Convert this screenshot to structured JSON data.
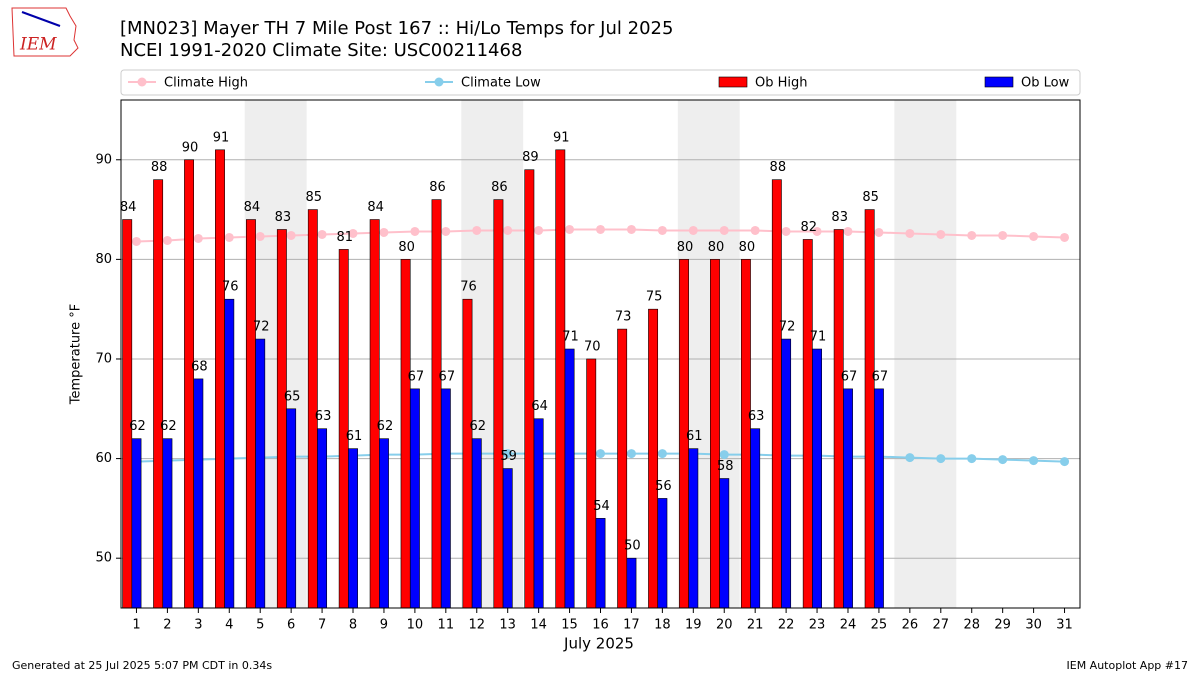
{
  "logo_text": "IEM",
  "footer_left": "Generated at 25 Jul 2025 5:07 PM CDT in 0.34s",
  "footer_right": "IEM Autoplot App #17",
  "chart_data": {
    "type": "bar",
    "title": "[MN023] Mayer TH 7 Mile Post 167 :: Hi/Lo Temps for Jul 2025",
    "subtitle": "NCEI 1991-2020 Climate Site: USC00211468",
    "x_label": "July 2025",
    "y_label": "Temperature $^\\circ$F",
    "y_label_text": "Temperature °F",
    "categories": [
      1,
      2,
      3,
      4,
      5,
      6,
      7,
      8,
      9,
      10,
      11,
      12,
      13,
      14,
      15,
      16,
      17,
      18,
      19,
      20,
      21,
      22,
      23,
      24,
      25,
      26,
      27,
      28,
      29,
      30,
      31
    ],
    "ylim": [
      45,
      96
    ],
    "yticks": [
      50,
      60,
      70,
      80,
      90
    ],
    "grid": true,
    "shaded_ranges": [
      [
        5,
        6
      ],
      [
        12,
        13
      ],
      [
        19,
        20
      ],
      [
        26,
        27
      ]
    ],
    "series": [
      {
        "name": "Climate High",
        "type": "line",
        "color": "#ffc0cb",
        "values": [
          81.8,
          81.9,
          82.1,
          82.2,
          82.3,
          82.4,
          82.5,
          82.6,
          82.7,
          82.8,
          82.8,
          82.9,
          82.9,
          82.9,
          83.0,
          83.0,
          83.0,
          82.9,
          82.9,
          82.9,
          82.9,
          82.8,
          82.8,
          82.8,
          82.7,
          82.6,
          82.5,
          82.4,
          82.4,
          82.3,
          82.2
        ]
      },
      {
        "name": "Climate Low",
        "type": "line",
        "color": "#87ceeb",
        "values": [
          59.7,
          59.8,
          59.9,
          60.0,
          60.1,
          60.2,
          60.2,
          60.3,
          60.4,
          60.4,
          60.5,
          60.5,
          60.5,
          60.5,
          60.5,
          60.5,
          60.5,
          60.5,
          60.5,
          60.4,
          60.4,
          60.3,
          60.3,
          60.2,
          60.2,
          60.1,
          60.0,
          60.0,
          59.9,
          59.8,
          59.7
        ]
      },
      {
        "name": "Ob High",
        "type": "bar",
        "color": "#ff0000",
        "values": [
          84,
          88,
          90,
          91,
          84,
          83,
          85,
          81,
          84,
          80,
          86,
          76,
          86,
          89,
          91,
          70,
          73,
          75,
          80,
          80,
          80,
          88,
          82,
          83,
          85,
          null,
          null,
          null,
          null,
          null,
          null
        ]
      },
      {
        "name": "Ob Low",
        "type": "bar",
        "color": "#0000ff",
        "values": [
          62,
          62,
          68,
          76,
          72,
          65,
          63,
          61,
          62,
          67,
          67,
          62,
          59,
          64,
          71,
          54,
          50,
          56,
          61,
          58,
          63,
          72,
          71,
          67,
          67,
          null,
          null,
          null,
          null,
          null,
          null
        ]
      }
    ]
  }
}
